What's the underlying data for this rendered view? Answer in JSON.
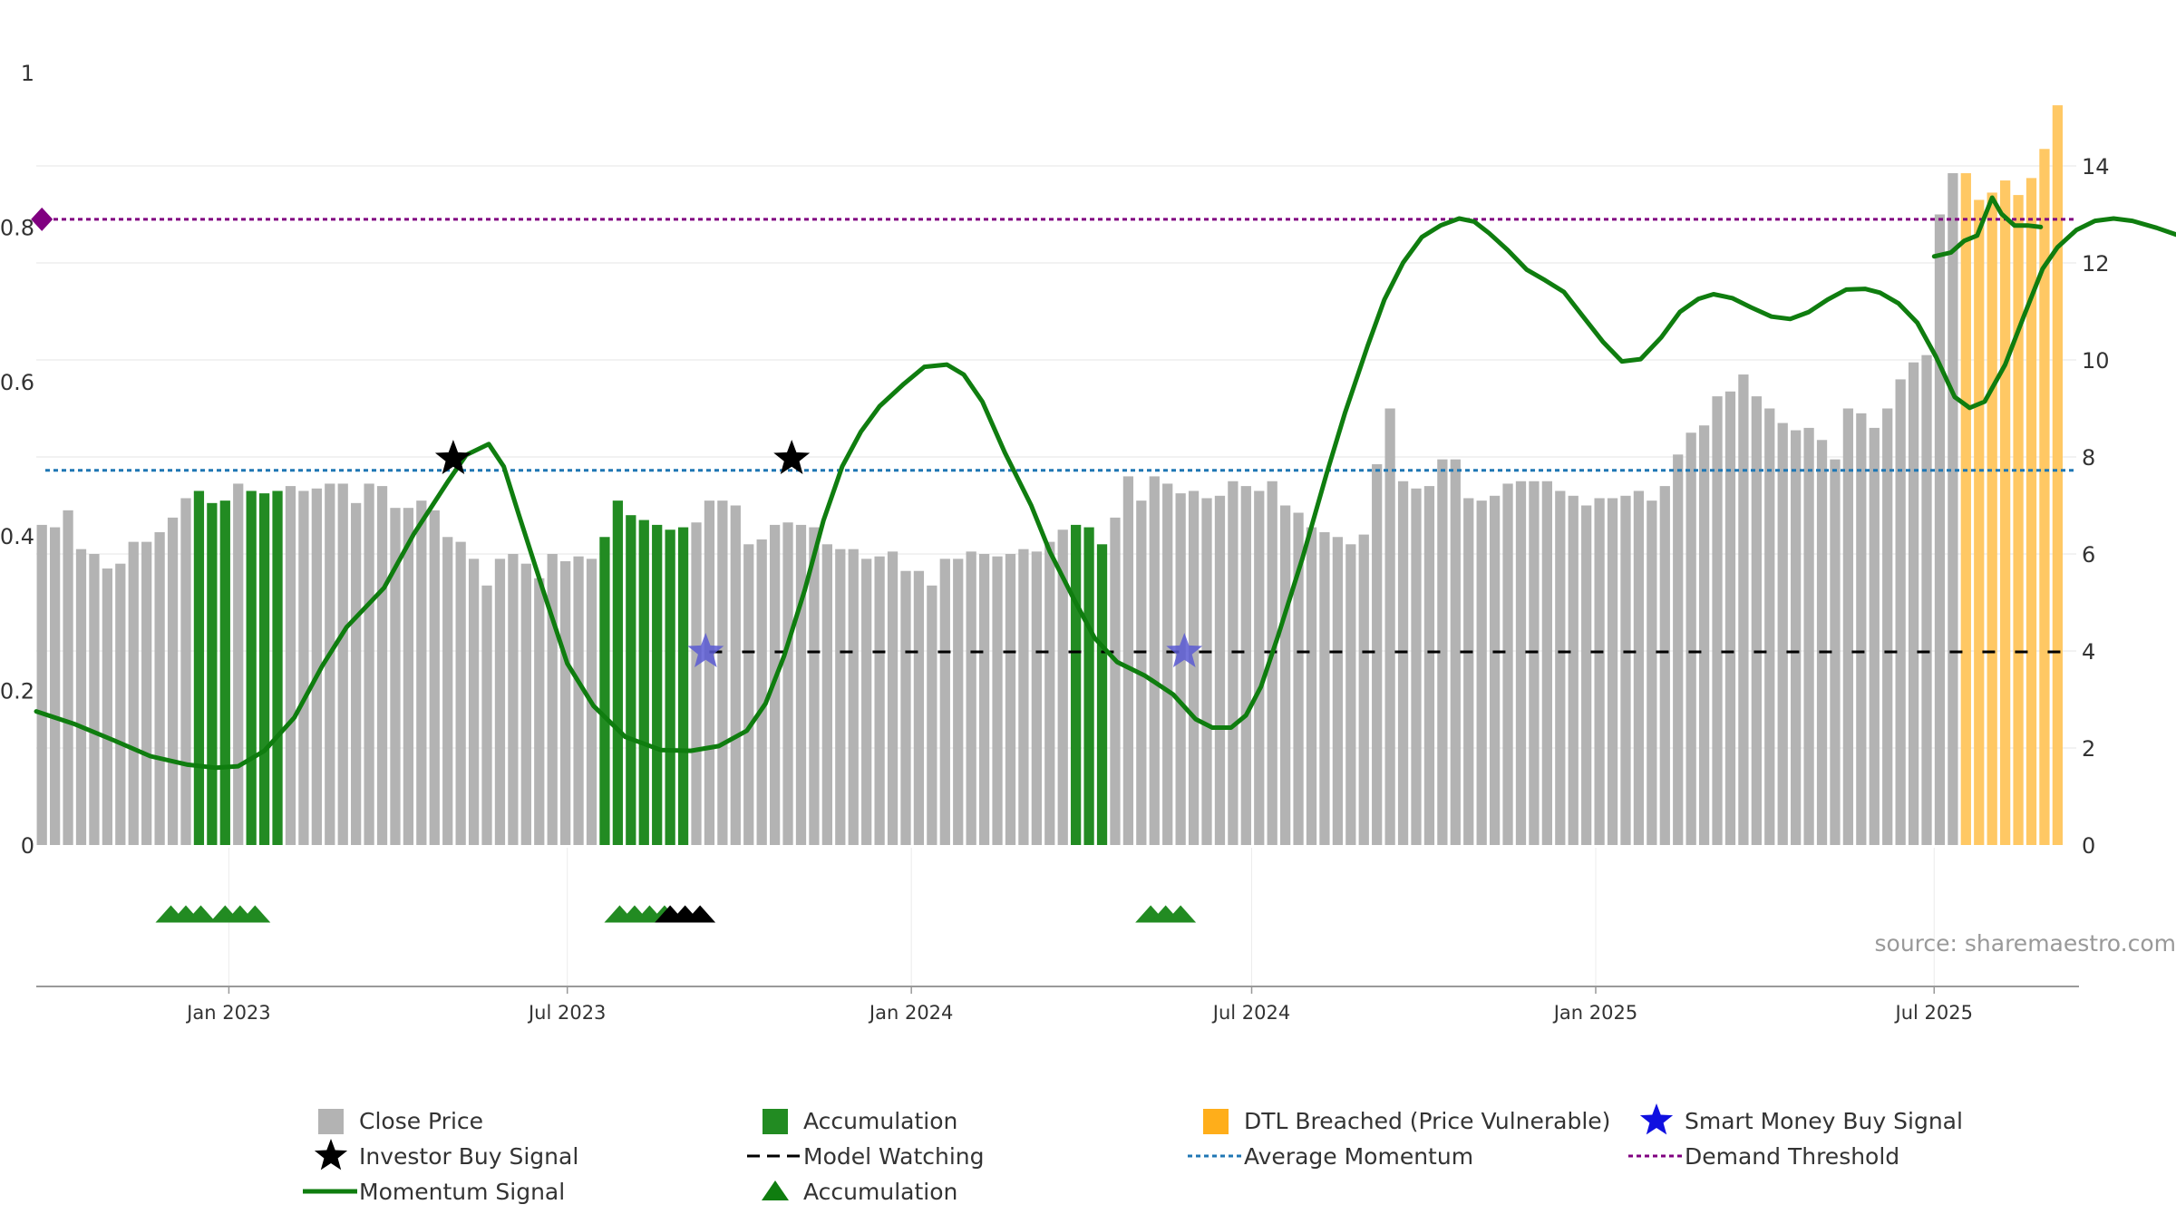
{
  "chart_data": {
    "type": "bar",
    "source_text": "source: sharemaestro.com",
    "colors": {
      "close_price": "#b3b3b3",
      "accumulation": "#228b22",
      "dtl_breached": "#ffc864",
      "momentum": "#0f7d0f",
      "model_watching": "#000000",
      "average_momentum": "#1f77b4",
      "demand_threshold": "#800080",
      "investor_star": "#000000",
      "smart_money_star": "#5a5ad2"
    },
    "left_axis": {
      "ylim": [
        0,
        1
      ],
      "ticks": [
        "0",
        "0.2",
        "0.4",
        "0.6",
        "0.8",
        "1"
      ]
    },
    "right_axis": {
      "ylim": [
        0,
        16
      ],
      "ticks": [
        "0",
        "2",
        "4",
        "6",
        "8",
        "10",
        "12",
        "14"
      ]
    },
    "x_axis": {
      "start": "2022-09-20",
      "end": "2025-09-15",
      "ticks": [
        {
          "date": "2023-01-01",
          "label": "Jan 2023"
        },
        {
          "date": "2023-07-01",
          "label": "Jul 2023"
        },
        {
          "date": "2024-01-01",
          "label": "Jan 2024"
        },
        {
          "date": "2024-07-01",
          "label": "Jul 2024"
        },
        {
          "date": "2025-01-01",
          "label": "Jan 2025"
        },
        {
          "date": "2025-07-01",
          "label": "Jul 2025"
        }
      ]
    },
    "price_bars": {
      "first_date": "2022-09-23",
      "step_days": 7,
      "closes": [
        6.6,
        6.55,
        6.9,
        6.1,
        6.0,
        5.7,
        5.8,
        6.25,
        6.25,
        6.45,
        6.75,
        7.15,
        7.3,
        7.05,
        7.1,
        7.45,
        7.3,
        7.25,
        7.3,
        7.4,
        7.3,
        7.35,
        7.45,
        7.45,
        7.05,
        7.45,
        7.4,
        6.95,
        6.95,
        7.1,
        6.9,
        6.35,
        6.25,
        5.9,
        5.35,
        5.9,
        6.0,
        5.8,
        5.5,
        6.0,
        5.85,
        5.95,
        5.9,
        6.35,
        7.1,
        6.8,
        6.7,
        6.6,
        6.5,
        6.55,
        6.65,
        7.1,
        7.1,
        7.0,
        6.2,
        6.3,
        6.6,
        6.65,
        6.6,
        6.55,
        6.2,
        6.1,
        6.1,
        5.9,
        5.95,
        6.05,
        5.65,
        5.65,
        5.35,
        5.9,
        5.9,
        6.05,
        6.0,
        5.95,
        6.0,
        6.1,
        6.05,
        6.25,
        6.5,
        6.6,
        6.55,
        6.2,
        6.75,
        7.6,
        7.1,
        7.6,
        7.45,
        7.25,
        7.3,
        7.15,
        7.2,
        7.5,
        7.4,
        7.3,
        7.5,
        7.0,
        6.85,
        6.55,
        6.45,
        6.35,
        6.2,
        6.4,
        7.85,
        9.0,
        7.5,
        7.35,
        7.4,
        7.95,
        7.95,
        7.15,
        7.1,
        7.2,
        7.45,
        7.5,
        7.5,
        7.5,
        7.3,
        7.2,
        7.0,
        7.15,
        7.15,
        7.2,
        7.3,
        7.1,
        7.4,
        8.05,
        8.5,
        8.65,
        9.25,
        9.35,
        9.7,
        9.25,
        9.0,
        8.7,
        8.55,
        8.6,
        8.35,
        7.95,
        9.0,
        8.9,
        8.6,
        9.0,
        9.6,
        9.95,
        10.1,
        13.0,
        13.85,
        13.85,
        13.3,
        13.45,
        13.7,
        13.4,
        13.75,
        14.35,
        15.25
      ],
      "accumulation_indices": [
        12,
        13,
        14,
        16,
        17,
        18,
        43,
        44,
        45,
        46,
        47,
        48,
        49,
        79,
        80,
        81
      ],
      "dtl_breached_from_index": 147,
      "dtl_breached_label_index": 148
    },
    "momentum": {
      "points": [
        [
          "2022-09-20",
          0.173
        ],
        [
          "2022-10-10",
          0.157
        ],
        [
          "2022-11-01",
          0.135
        ],
        [
          "2022-11-20",
          0.115
        ],
        [
          "2022-12-10",
          0.104
        ],
        [
          "2022-12-25",
          0.1
        ],
        [
          "2023-01-06",
          0.102
        ],
        [
          "2023-01-20",
          0.122
        ],
        [
          "2023-02-05",
          0.165
        ],
        [
          "2023-02-20",
          0.232
        ],
        [
          "2023-03-05",
          0.282
        ],
        [
          "2023-03-25",
          0.333
        ],
        [
          "2023-04-10",
          0.403
        ],
        [
          "2023-04-28",
          0.47
        ],
        [
          "2023-05-08",
          0.505
        ],
        [
          "2023-05-20",
          0.519
        ],
        [
          "2023-05-28",
          0.49
        ],
        [
          "2023-06-05",
          0.428
        ],
        [
          "2023-06-18",
          0.33
        ],
        [
          "2023-07-01",
          0.235
        ],
        [
          "2023-07-15",
          0.18
        ],
        [
          "2023-08-01",
          0.14
        ],
        [
          "2023-08-20",
          0.123
        ],
        [
          "2023-09-05",
          0.122
        ],
        [
          "2023-09-20",
          0.128
        ],
        [
          "2023-10-05",
          0.148
        ],
        [
          "2023-10-15",
          0.183
        ],
        [
          "2023-10-25",
          0.245
        ],
        [
          "2023-11-05",
          0.33
        ],
        [
          "2023-11-15",
          0.42
        ],
        [
          "2023-11-25",
          0.49
        ],
        [
          "2023-12-05",
          0.535
        ],
        [
          "2023-12-15",
          0.568
        ],
        [
          "2023-12-28",
          0.597
        ],
        [
          "2024-01-08",
          0.619
        ],
        [
          "2024-01-20",
          0.622
        ],
        [
          "2024-01-29",
          0.609
        ],
        [
          "2024-02-08",
          0.574
        ],
        [
          "2024-02-20",
          0.508
        ],
        [
          "2024-03-05",
          0.44
        ],
        [
          "2024-03-15",
          0.38
        ],
        [
          "2024-03-28",
          0.318
        ],
        [
          "2024-04-08",
          0.268
        ],
        [
          "2024-04-20",
          0.237
        ],
        [
          "2024-05-05",
          0.219
        ],
        [
          "2024-05-20",
          0.195
        ],
        [
          "2024-06-01",
          0.163
        ],
        [
          "2024-06-10",
          0.152
        ],
        [
          "2024-06-20",
          0.152
        ],
        [
          "2024-06-28",
          0.168
        ],
        [
          "2024-07-06",
          0.205
        ],
        [
          "2024-07-15",
          0.27
        ],
        [
          "2024-07-28",
          0.37
        ],
        [
          "2024-08-10",
          0.48
        ],
        [
          "2024-08-20",
          0.56
        ],
        [
          "2024-09-01",
          0.646
        ],
        [
          "2024-09-10",
          0.706
        ],
        [
          "2024-09-20",
          0.754
        ],
        [
          "2024-09-30",
          0.787
        ],
        [
          "2024-10-10",
          0.802
        ],
        [
          "2024-10-20",
          0.811
        ],
        [
          "2024-10-28",
          0.807
        ],
        [
          "2024-11-05",
          0.792
        ],
        [
          "2024-11-15",
          0.77
        ],
        [
          "2024-11-25",
          0.745
        ],
        [
          "2024-12-05",
          0.731
        ],
        [
          "2024-12-15",
          0.716
        ],
        [
          "2024-12-25",
          0.685
        ],
        [
          "2025-01-05",
          0.651
        ],
        [
          "2025-01-15",
          0.626
        ],
        [
          "2025-01-25",
          0.629
        ],
        [
          "2025-02-05",
          0.657
        ],
        [
          "2025-02-15",
          0.69
        ],
        [
          "2025-02-25",
          0.707
        ],
        [
          "2025-03-05",
          0.713
        ],
        [
          "2025-03-15",
          0.708
        ],
        [
          "2025-03-25",
          0.696
        ],
        [
          "2025-04-05",
          0.684
        ],
        [
          "2025-04-15",
          0.681
        ],
        [
          "2025-04-25",
          0.69
        ],
        [
          "2025-05-05",
          0.706
        ],
        [
          "2025-05-15",
          0.719
        ],
        [
          "2025-05-25",
          0.72
        ],
        [
          "2025-06-02",
          0.715
        ],
        [
          "2025-06-12",
          0.701
        ],
        [
          "2025-06-22",
          0.676
        ],
        [
          "2025-07-02",
          0.632
        ],
        [
          "2025-07-12",
          0.58
        ],
        [
          "2025-07-20",
          0.566
        ],
        [
          "2025-07-28",
          0.574
        ],
        [
          "2025-08-08",
          0.622
        ],
        [
          "2025-08-18",
          0.685
        ],
        [
          "2025-08-28",
          0.746
        ],
        [
          "2025-09-05",
          0.774
        ],
        [
          "2025-09-15",
          0.796
        ],
        [
          "2025-09-25",
          0.808
        ],
        [
          "2025-10-05",
          0.811
        ],
        [
          "2025-10-15",
          0.808
        ],
        [
          "2025-10-28",
          0.799
        ],
        [
          "2025-11-10",
          0.788
        ],
        [
          "2025-11-25",
          0.781
        ],
        [
          "2025-12-10",
          0.771
        ],
        [
          "2025-12-28",
          0.761
        ],
        [
          "2026-01-10",
          0.76
        ],
        [
          "2026-01-25",
          0.767
        ]
      ],
      "end_points": [
        [
          "2025-07-01",
          0.762
        ],
        [
          "2025-07-10",
          0.767
        ],
        [
          "2025-07-17",
          0.782
        ],
        [
          "2025-07-24",
          0.789
        ],
        [
          "2025-08-01",
          0.838
        ],
        [
          "2025-08-06",
          0.817
        ],
        [
          "2025-08-13",
          0.802
        ],
        [
          "2025-08-20",
          0.802
        ],
        [
          "2025-08-27",
          0.8
        ]
      ]
    },
    "average_momentum": 0.485,
    "demand_threshold": 0.81,
    "demand_threshold_marker_date": "2022-09-23",
    "model_watching": {
      "level": 0.25,
      "from": "2023-09-15",
      "to": "2025-09-15"
    },
    "investor_buy_signals": [
      {
        "date": "2023-05-01",
        "value": 0.5
      },
      {
        "date": "2023-10-29",
        "value": 0.5
      }
    ],
    "smart_money_buy_signals": [
      {
        "date": "2023-09-13",
        "value": 0.25
      },
      {
        "date": "2024-05-26",
        "value": 0.25
      }
    ],
    "accumulation_triangles": {
      "green": [
        "2022-12-01",
        "2022-12-09",
        "2022-12-17",
        "2022-12-30",
        "2023-01-07",
        "2023-01-15",
        "2023-07-29",
        "2023-08-06",
        "2023-08-14",
        "2023-08-22",
        "2024-05-08",
        "2024-05-16",
        "2024-05-24"
      ],
      "black": [
        "2023-08-25",
        "2023-09-02",
        "2023-09-10"
      ]
    },
    "legend": [
      {
        "key": "close_price",
        "label": "Close Price"
      },
      {
        "key": "accumulation_bar",
        "label": "Accumulation"
      },
      {
        "key": "dtl",
        "label": "DTL Breached (Price Vulnerable)"
      },
      {
        "key": "smart_money",
        "label": "Smart Money Buy Signal"
      },
      {
        "key": "investor",
        "label": "Investor Buy Signal"
      },
      {
        "key": "model_watching",
        "label": "Model Watching"
      },
      {
        "key": "average_momentum",
        "label": "Average Momentum"
      },
      {
        "key": "demand_threshold",
        "label": "Demand Threshold"
      },
      {
        "key": "momentum",
        "label": "Momentum Signal"
      },
      {
        "key": "accumulation_triangle",
        "label": "Accumulation"
      }
    ]
  }
}
